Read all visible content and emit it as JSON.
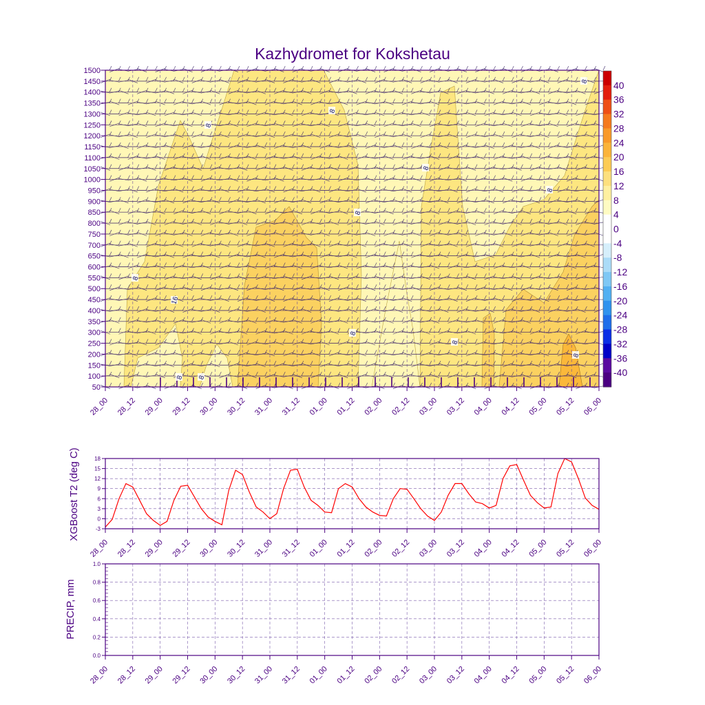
{
  "chart_data": [
    {
      "type": "heatmap",
      "title": "Kazhydromet for Kokshetau",
      "x_ticks": [
        "28_00",
        "28_12",
        "29_00",
        "29_12",
        "30_00",
        "30_12",
        "31_00",
        "31_12",
        "01_00",
        "01_12",
        "02_00",
        "02_12",
        "03_00",
        "03_12",
        "04_00",
        "04_12",
        "05_00",
        "05_12",
        "06_00"
      ],
      "y_ticks": [
        50,
        100,
        150,
        200,
        250,
        300,
        350,
        400,
        450,
        500,
        550,
        600,
        650,
        700,
        750,
        800,
        850,
        900,
        950,
        1000,
        1050,
        1100,
        1150,
        1200,
        1250,
        1300,
        1350,
        1400,
        1450,
        1500
      ],
      "ylim": [
        50,
        1500
      ],
      "colorbar": {
        "levels": [
          -40,
          -36,
          -32,
          -28,
          -24,
          -20,
          -16,
          -12,
          -8,
          -4,
          0,
          4,
          8,
          12,
          16,
          20,
          24,
          28,
          32,
          36,
          40
        ],
        "colors": [
          "#4b0082",
          "#5a0aa0",
          "#0000c8",
          "#0a2ee6",
          "#1e6eea",
          "#2f93ee",
          "#52b0f2",
          "#7fc8f5",
          "#abdcf8",
          "#d6effb",
          "#ffffff",
          "#ffffff",
          "#fffbc2",
          "#fff0a0",
          "#fde07e",
          "#fdcc55",
          "#fbb43a",
          "#f99a2a",
          "#f57a1e",
          "#ee5016",
          "#e31e0e",
          "#cc0000"
        ],
        "labels": [
          "40",
          "36",
          "32",
          "28",
          "24",
          "20",
          "16",
          "12",
          "8",
          "4",
          "0",
          "-4",
          "-8",
          "-12",
          "-16",
          "-20",
          "-24",
          "-28",
          "-32",
          "-36",
          "-40"
        ]
      },
      "contour_labels": [
        "8",
        "8",
        "8",
        "8",
        "8",
        "8",
        "8",
        "8",
        "8",
        "8",
        "8",
        "8",
        "16",
        "0"
      ],
      "fill_colors": {
        "light": "#fff7b6",
        "mid": "#fde680",
        "warm": "#fbd160",
        "warmer": "#fbb83a"
      },
      "grid": true
    },
    {
      "type": "line",
      "ylabel": "XGBoost T2 (deg C)",
      "x_ticks": [
        "28_00",
        "28_12",
        "29_00",
        "29_12",
        "30_00",
        "30_12",
        "31_00",
        "31_12",
        "01_00",
        "01_12",
        "02_00",
        "02_12",
        "03_00",
        "03_12",
        "04_00",
        "04_12",
        "05_00",
        "05_12",
        "06_00"
      ],
      "y_ticks": [
        -3,
        0,
        3,
        6,
        9,
        12,
        15,
        18
      ],
      "ylim": [
        -3,
        18
      ],
      "x_step_hours": 3,
      "values": [
        -2.5,
        -0.2,
        6.0,
        10.5,
        9.5,
        5.5,
        1.5,
        -0.5,
        -2.0,
        -0.8,
        5.5,
        9.7,
        10.0,
        6.5,
        3.0,
        0.5,
        -0.8,
        -1.8,
        8.5,
        14.5,
        13.2,
        8.0,
        3.5,
        2.0,
        0.0,
        1.5,
        9.0,
        14.5,
        14.8,
        9.5,
        5.5,
        4.0,
        2.0,
        1.8,
        9.0,
        10.5,
        9.5,
        6.0,
        3.5,
        2.0,
        1.0,
        0.8,
        6.0,
        9.0,
        8.8,
        6.0,
        3.0,
        0.8,
        -0.5,
        2.0,
        7.0,
        10.5,
        10.5,
        7.5,
        5.0,
        4.5,
        3.2,
        4.0,
        12.0,
        15.8,
        16.2,
        11.5,
        7.0,
        4.8,
        3.2,
        3.5,
        13.5,
        18.0,
        17.0,
        12.0,
        6.2,
        4.0,
        2.8
      ],
      "color": "#ff0000",
      "grid": true
    },
    {
      "type": "line",
      "ylabel": "PRECIP, mm",
      "x_ticks": [
        "28_00",
        "28_12",
        "29_00",
        "29_12",
        "30_00",
        "30_12",
        "31_00",
        "31_12",
        "01_00",
        "01_12",
        "02_00",
        "02_12",
        "03_00",
        "03_12",
        "04_00",
        "04_12",
        "05_00",
        "05_12",
        "06_00"
      ],
      "y_ticks": [
        "0.0",
        "0.2",
        "0.4",
        "0.6",
        "0.8",
        "1.0"
      ],
      "ylim": [
        0,
        1
      ],
      "values": [],
      "grid": true
    }
  ]
}
